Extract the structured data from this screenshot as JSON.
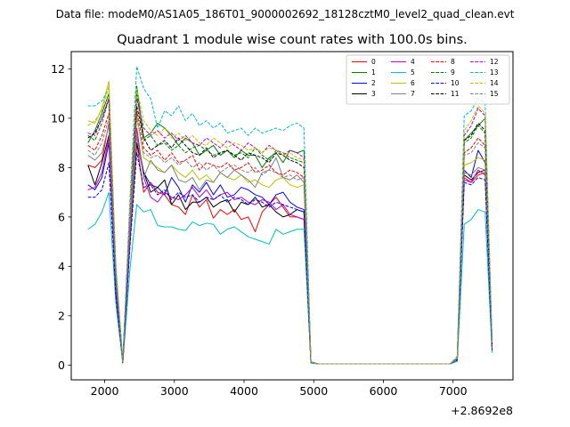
{
  "figure": {
    "suptitle": "Data file: modeM0/AS1A05_186T01_9000002692_18128cztM0_level2_quad_clean.evt"
  },
  "chart_data": {
    "type": "line",
    "title": "Quadrant 1 module wise count rates with 100.0s bins.",
    "xlabel": "",
    "ylabel": "",
    "x_offset_text": "+2.8692e8",
    "xlim": [
      1520,
      7860
    ],
    "ylim": [
      -0.6,
      12.7
    ],
    "xticks": [
      2000,
      3000,
      4000,
      5000,
      6000,
      7000
    ],
    "yticks": [
      0,
      2,
      4,
      6,
      8,
      10,
      12
    ],
    "grid": false,
    "legend": {
      "placement": "upper-right",
      "columns": 4
    },
    "x": [
      1760,
      1860,
      1960,
      2060,
      2160,
      2260,
      2360,
      2460,
      2560,
      2660,
      2760,
      2860,
      2960,
      3060,
      3160,
      3260,
      3360,
      3460,
      3560,
      3660,
      3760,
      3860,
      3960,
      4060,
      4160,
      4260,
      4360,
      4460,
      4560,
      4660,
      4760,
      4860,
      4960,
      5060,
      5160,
      5260,
      5360,
      5460,
      5560,
      5660,
      5760,
      5860,
      5960,
      6060,
      6160,
      6260,
      6360,
      6460,
      6560,
      6660,
      6760,
      6860,
      6960,
      7060,
      7160,
      7260,
      7360,
      7460,
      7560
    ],
    "series": [
      {
        "name": "0",
        "color": "#ff0000",
        "dash": false,
        "values": [
          8.1,
          8.0,
          8.3,
          9.8,
          3.0,
          0.1,
          5.0,
          9.0,
          7.0,
          7.4,
          7.0,
          6.9,
          6.5,
          6.4,
          6.1,
          6.9,
          6.4,
          6.7,
          5.95,
          6.3,
          6.1,
          6.3,
          5.9,
          6.0,
          5.4,
          6.2,
          6.5,
          6.8,
          6.4,
          6.0,
          6.0,
          5.9,
          0.1,
          0.05,
          0.05,
          0.05,
          0.05,
          0.05,
          0.05,
          0.05,
          0.05,
          0.05,
          0.05,
          0.05,
          0.05,
          0.05,
          0.05,
          0.05,
          0.05,
          0.05,
          0.05,
          0.05,
          0.05,
          0.2,
          7.6,
          7.4,
          7.7,
          7.8,
          0.6
        ]
      },
      {
        "name": "1",
        "color": "#008000",
        "dash": false,
        "values": [
          9.0,
          9.5,
          10.2,
          11.0,
          3.9,
          0.15,
          6.2,
          11.3,
          9.2,
          9.4,
          9.8,
          9.6,
          9.3,
          8.9,
          9.2,
          9.0,
          8.5,
          8.7,
          8.9,
          8.5,
          8.7,
          8.4,
          8.7,
          8.5,
          8.5,
          8.0,
          8.4,
          8.6,
          8.2,
          8.7,
          8.6,
          8.7,
          0.12,
          0.05,
          0.05,
          0.05,
          0.05,
          0.05,
          0.05,
          0.05,
          0.05,
          0.05,
          0.05,
          0.05,
          0.05,
          0.05,
          0.05,
          0.05,
          0.05,
          0.05,
          0.05,
          0.05,
          0.05,
          0.3,
          9.1,
          9.4,
          9.7,
          10.0,
          0.8
        ]
      },
      {
        "name": "2",
        "color": "#0000ff",
        "dash": false,
        "values": [
          7.3,
          7.1,
          7.6,
          9.0,
          3.0,
          0.1,
          4.9,
          9.3,
          7.8,
          7.3,
          7.2,
          6.9,
          7.6,
          7.2,
          6.6,
          7.3,
          7.0,
          7.4,
          6.9,
          7.3,
          6.8,
          6.9,
          7.2,
          7.1,
          6.9,
          6.8,
          6.5,
          6.9,
          7.0,
          6.6,
          6.4,
          6.3,
          0.1,
          0.05,
          0.05,
          0.05,
          0.05,
          0.05,
          0.05,
          0.05,
          0.05,
          0.05,
          0.05,
          0.05,
          0.05,
          0.05,
          0.05,
          0.05,
          0.05,
          0.05,
          0.05,
          0.05,
          0.05,
          0.2,
          7.9,
          7.6,
          8.7,
          8.2,
          0.7
        ]
      },
      {
        "name": "3",
        "color": "#000000",
        "dash": false,
        "values": [
          8.1,
          7.3,
          8.2,
          9.3,
          3.3,
          0.1,
          5.1,
          9.0,
          7.8,
          7.0,
          7.2,
          7.5,
          6.5,
          6.9,
          6.3,
          6.6,
          6.6,
          6.8,
          6.4,
          6.6,
          6.7,
          6.2,
          6.6,
          6.5,
          6.8,
          6.4,
          6.5,
          6.2,
          6.0,
          6.1,
          6.3,
          6.2,
          0.1,
          0.05,
          0.05,
          0.05,
          0.05,
          0.05,
          0.05,
          0.05,
          0.05,
          0.05,
          0.05,
          0.05,
          0.05,
          0.05,
          0.05,
          0.05,
          0.05,
          0.05,
          0.05,
          0.05,
          0.05,
          0.2,
          7.7,
          7.5,
          7.8,
          7.9,
          0.7
        ]
      },
      {
        "name": "4",
        "color": "#bf00bf",
        "dash": false,
        "values": [
          7.1,
          7.2,
          7.8,
          9.2,
          3.2,
          0.1,
          5.1,
          9.6,
          7.6,
          6.8,
          6.6,
          7.0,
          6.8,
          6.7,
          6.9,
          7.2,
          6.8,
          7.1,
          6.7,
          6.9,
          7.0,
          6.7,
          6.8,
          6.6,
          6.5,
          6.7,
          6.6,
          6.3,
          6.5,
          6.1,
          6.0,
          5.9,
          0.1,
          0.05,
          0.05,
          0.05,
          0.05,
          0.05,
          0.05,
          0.05,
          0.05,
          0.05,
          0.05,
          0.05,
          0.05,
          0.05,
          0.05,
          0.05,
          0.05,
          0.05,
          0.05,
          0.05,
          0.05,
          0.2,
          7.5,
          7.4,
          7.9,
          7.7,
          0.7
        ]
      },
      {
        "name": "5",
        "color": "#00bfbf",
        "dash": false,
        "values": [
          5.5,
          5.7,
          6.2,
          7.0,
          2.5,
          0.08,
          3.8,
          6.5,
          6.2,
          6.3,
          5.65,
          5.6,
          5.6,
          5.5,
          5.45,
          5.8,
          5.65,
          5.75,
          5.7,
          5.3,
          5.5,
          5.6,
          5.4,
          5.2,
          5.1,
          5.0,
          4.9,
          5.5,
          5.3,
          5.4,
          5.5,
          5.5,
          0.08,
          0.05,
          0.05,
          0.05,
          0.05,
          0.05,
          0.05,
          0.05,
          0.05,
          0.05,
          0.05,
          0.05,
          0.05,
          0.05,
          0.05,
          0.05,
          0.05,
          0.05,
          0.05,
          0.05,
          0.05,
          0.15,
          5.7,
          5.9,
          6.3,
          6.2,
          0.5
        ]
      },
      {
        "name": "6",
        "color": "#bfbf00",
        "dash": false,
        "values": [
          9.9,
          9.8,
          10.4,
          11.5,
          3.7,
          0.15,
          5.9,
          10.1,
          8.4,
          8.2,
          8.0,
          7.8,
          8.1,
          7.8,
          7.6,
          7.9,
          7.5,
          7.7,
          7.4,
          7.8,
          7.6,
          7.5,
          7.7,
          7.4,
          7.5,
          7.3,
          7.2,
          7.5,
          7.6,
          7.3,
          7.2,
          7.3,
          0.11,
          0.05,
          0.05,
          0.05,
          0.05,
          0.05,
          0.05,
          0.05,
          0.05,
          0.05,
          0.05,
          0.05,
          0.05,
          0.05,
          0.05,
          0.05,
          0.05,
          0.05,
          0.05,
          0.05,
          0.05,
          0.25,
          8.1,
          8.2,
          8.4,
          8.3,
          0.7
        ]
      },
      {
        "name": "7",
        "color": "#808080",
        "dash": false,
        "values": [
          8.5,
          8.3,
          8.6,
          9.7,
          3.4,
          0.12,
          5.4,
          9.3,
          7.6,
          8.3,
          7.9,
          7.8,
          8.1,
          7.5,
          7.4,
          7.6,
          7.1,
          7.5,
          7.4,
          7.8,
          7.6,
          7.9,
          7.7,
          7.5,
          7.2,
          7.8,
          7.9,
          8.4,
          7.6,
          7.5,
          7.7,
          7.4,
          0.1,
          0.05,
          0.05,
          0.05,
          0.05,
          0.05,
          0.05,
          0.05,
          0.05,
          0.05,
          0.05,
          0.05,
          0.05,
          0.05,
          0.05,
          0.05,
          0.05,
          0.05,
          0.05,
          0.05,
          0.05,
          0.2,
          7.8,
          7.7,
          8.0,
          7.9,
          0.7
        ]
      },
      {
        "name": "8",
        "color": "#ff0000",
        "dash": true,
        "values": [
          8.9,
          8.7,
          9.3,
          10.2,
          3.4,
          0.12,
          5.7,
          10.3,
          8.8,
          8.5,
          8.7,
          8.3,
          8.6,
          8.2,
          8.3,
          8.5,
          7.9,
          8.2,
          8.1,
          8.0,
          8.2,
          7.9,
          8.0,
          8.2,
          7.8,
          7.9,
          8.1,
          7.8,
          7.7,
          7.9,
          7.8,
          7.6,
          0.11,
          0.05,
          0.05,
          0.05,
          0.05,
          0.05,
          0.05,
          0.05,
          0.05,
          0.05,
          0.05,
          0.05,
          0.05,
          0.05,
          0.05,
          0.05,
          0.05,
          0.05,
          0.05,
          0.05,
          0.05,
          0.25,
          8.6,
          8.8,
          9.2,
          8.9,
          0.8
        ]
      },
      {
        "name": "9",
        "color": "#008000",
        "dash": true,
        "values": [
          9.3,
          9.1,
          9.8,
          10.8,
          3.7,
          0.14,
          6.0,
          11.0,
          9.1,
          9.3,
          8.9,
          9.0,
          8.7,
          8.9,
          8.6,
          8.8,
          8.9,
          8.7,
          8.5,
          8.6,
          8.7,
          8.5,
          8.6,
          8.4,
          8.8,
          8.5,
          8.3,
          8.7,
          8.6,
          8.4,
          8.3,
          8.2,
          0.12,
          0.05,
          0.05,
          0.05,
          0.05,
          0.05,
          0.05,
          0.05,
          0.05,
          0.05,
          0.05,
          0.05,
          0.05,
          0.05,
          0.05,
          0.05,
          0.05,
          0.05,
          0.05,
          0.05,
          0.05,
          0.3,
          9.0,
          9.2,
          9.7,
          9.4,
          0.8
        ]
      },
      {
        "name": "10",
        "color": "#0000ff",
        "dash": true,
        "values": [
          6.8,
          6.8,
          7.1,
          8.2,
          2.8,
          0.1,
          4.7,
          8.6,
          7.2,
          7.3,
          6.9,
          7.1,
          6.7,
          7.0,
          6.8,
          6.9,
          6.6,
          6.8,
          6.7,
          6.9,
          6.6,
          6.8,
          6.7,
          6.5,
          6.7,
          6.6,
          6.4,
          6.6,
          6.5,
          6.4,
          6.3,
          6.2,
          0.1,
          0.05,
          0.05,
          0.05,
          0.05,
          0.05,
          0.05,
          0.05,
          0.05,
          0.05,
          0.05,
          0.05,
          0.05,
          0.05,
          0.05,
          0.05,
          0.05,
          0.05,
          0.05,
          0.05,
          0.05,
          0.2,
          7.4,
          7.3,
          7.6,
          7.5,
          0.6
        ]
      },
      {
        "name": "11",
        "color": "#000000",
        "dash": true,
        "values": [
          9.2,
          9.4,
          10.0,
          10.8,
          3.7,
          0.14,
          6.0,
          10.5,
          9.2,
          8.7,
          8.9,
          9.1,
          8.8,
          9.2,
          8.9,
          8.6,
          8.5,
          8.8,
          8.4,
          8.6,
          8.7,
          8.5,
          8.3,
          8.6,
          8.5,
          8.4,
          8.2,
          8.6,
          8.5,
          8.3,
          8.2,
          8.0,
          0.12,
          0.05,
          0.05,
          0.05,
          0.05,
          0.05,
          0.05,
          0.05,
          0.05,
          0.05,
          0.05,
          0.05,
          0.05,
          0.05,
          0.05,
          0.05,
          0.05,
          0.05,
          0.05,
          0.05,
          0.05,
          0.3,
          9.1,
          9.3,
          9.8,
          9.5,
          0.8
        ]
      },
      {
        "name": "12",
        "color": "#bf00bf",
        "dash": true,
        "values": [
          9.4,
          9.3,
          10.0,
          10.8,
          3.7,
          0.14,
          6.0,
          10.8,
          9.6,
          9.3,
          9.5,
          9.2,
          9.4,
          9.1,
          9.3,
          9.0,
          8.9,
          9.2,
          9.0,
          8.8,
          9.1,
          8.9,
          8.7,
          9.0,
          8.8,
          8.6,
          8.9,
          8.7,
          8.5,
          8.7,
          8.6,
          8.4,
          0.12,
          0.05,
          0.05,
          0.05,
          0.05,
          0.05,
          0.05,
          0.05,
          0.05,
          0.05,
          0.05,
          0.05,
          0.05,
          0.05,
          0.05,
          0.05,
          0.05,
          0.05,
          0.05,
          0.05,
          0.05,
          0.3,
          9.3,
          9.7,
          10.4,
          10.1,
          0.9
        ]
      },
      {
        "name": "13",
        "color": "#00bfbf",
        "dash": true,
        "values": [
          10.5,
          10.5,
          10.7,
          11.2,
          4.1,
          0.15,
          6.6,
          12.1,
          11.2,
          10.8,
          9.6,
          10.3,
          10.1,
          10.5,
          9.9,
          10.2,
          9.7,
          9.9,
          9.6,
          9.8,
          9.4,
          9.5,
          9.6,
          9.3,
          9.6,
          9.4,
          9.5,
          9.6,
          9.5,
          9.7,
          9.8,
          9.6,
          0.14,
          0.05,
          0.05,
          0.05,
          0.05,
          0.05,
          0.05,
          0.05,
          0.05,
          0.05,
          0.05,
          0.05,
          0.05,
          0.05,
          0.05,
          0.05,
          0.05,
          0.05,
          0.05,
          0.05,
          0.05,
          0.35,
          10.1,
          10.3,
          10.8,
          10.6,
          0.9
        ]
      },
      {
        "name": "14",
        "color": "#bfbf00",
        "dash": true,
        "values": [
          9.7,
          9.9,
          10.3,
          11.3,
          3.9,
          0.14,
          6.2,
          11.2,
          9.9,
          9.5,
          9.3,
          9.6,
          9.2,
          9.4,
          9.1,
          9.3,
          9.0,
          8.9,
          9.2,
          9.0,
          8.8,
          9.0,
          8.9,
          8.7,
          8.8,
          8.6,
          8.8,
          8.7,
          8.5,
          8.6,
          8.4,
          8.3,
          0.12,
          0.05,
          0.05,
          0.05,
          0.05,
          0.05,
          0.05,
          0.05,
          0.05,
          0.05,
          0.05,
          0.05,
          0.05,
          0.05,
          0.05,
          0.05,
          0.05,
          0.05,
          0.05,
          0.05,
          0.05,
          0.3,
          9.5,
          9.9,
          10.5,
          10.2,
          0.9
        ]
      },
      {
        "name": "15",
        "color": "#808080",
        "dash": true,
        "values": [
          8.7,
          8.5,
          9.0,
          10.0,
          3.5,
          0.12,
          5.7,
          10.0,
          8.6,
          8.4,
          8.5,
          8.2,
          8.4,
          8.1,
          8.3,
          8.0,
          8.2,
          7.9,
          8.1,
          7.8,
          8.0,
          8.1,
          7.9,
          7.8,
          8.0,
          7.7,
          7.9,
          7.8,
          7.6,
          7.7,
          7.5,
          7.6,
          0.11,
          0.05,
          0.05,
          0.05,
          0.05,
          0.05,
          0.05,
          0.05,
          0.05,
          0.05,
          0.05,
          0.05,
          0.05,
          0.05,
          0.05,
          0.05,
          0.05,
          0.05,
          0.05,
          0.05,
          0.05,
          0.25,
          8.5,
          8.6,
          9.0,
          8.8,
          0.8
        ]
      }
    ]
  }
}
